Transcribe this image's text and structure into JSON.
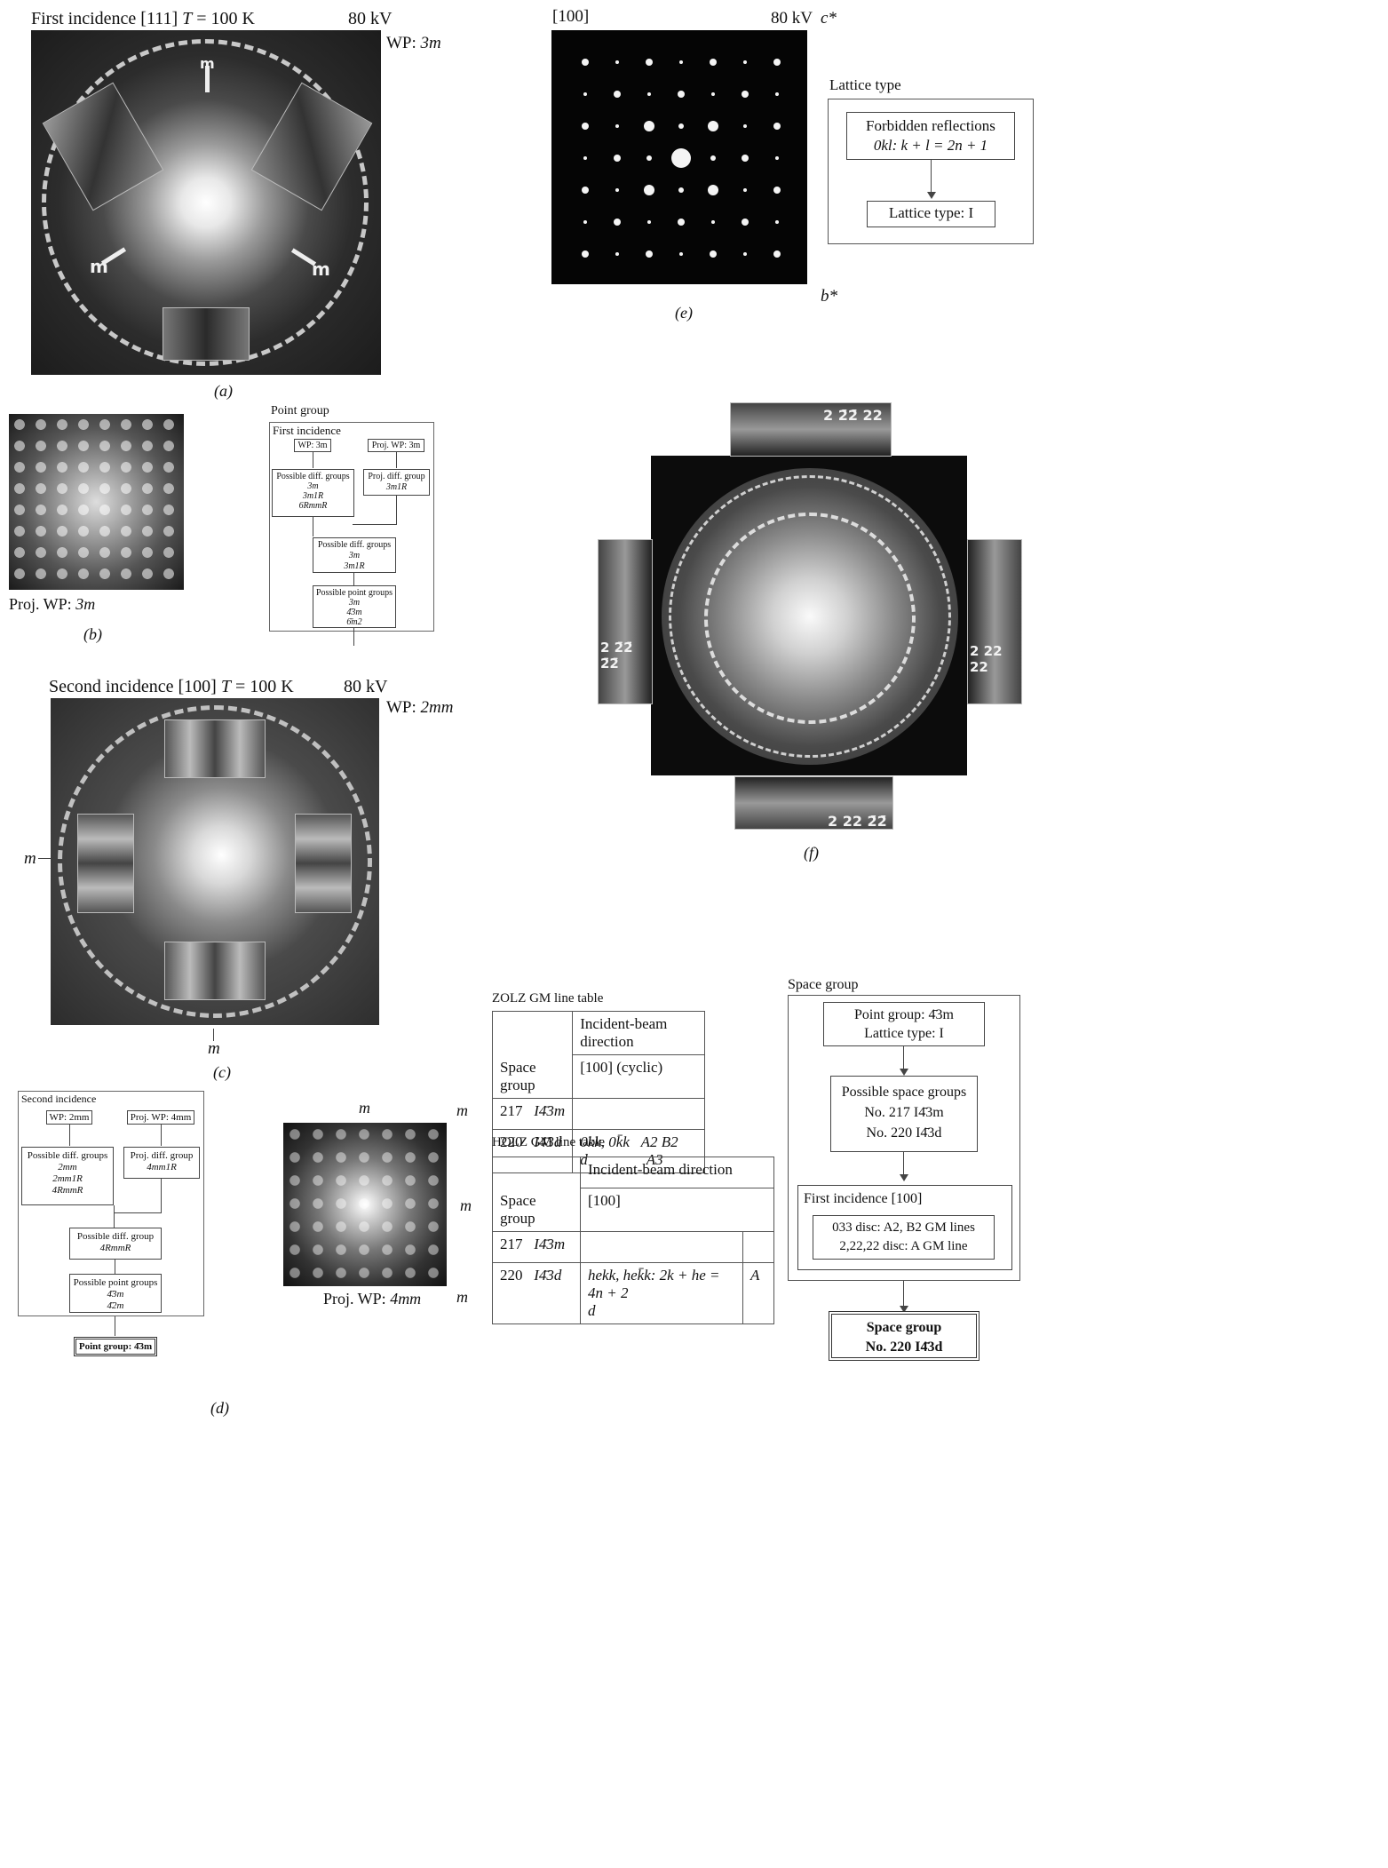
{
  "panel_a": {
    "title_prefix": "First incidence [111] ",
    "title_T": "T",
    "title_suffix": " = 100 K",
    "kv": "80 kV",
    "wp_label": "WP: ",
    "wp_value": "3m",
    "mirror_label": "m",
    "caption": "(a)"
  },
  "panel_b": {
    "proj_label": "Proj. WP: ",
    "proj_value": "3m",
    "caption": "(b)"
  },
  "flow_point_group": {
    "heading": "Point group",
    "section": "First incidence",
    "wp": "WP: 3m",
    "proj_wp": "Proj. WP: 3m",
    "possible_diff_title": "Possible diff. groups",
    "possible_diff_items": [
      "3m",
      "3m1R",
      "6RmmR"
    ],
    "proj_diff_title": "Proj. diff. group",
    "proj_diff_item": "3m1R",
    "possible_diff2_title": "Possible diff. groups",
    "possible_diff2_items": [
      "3m",
      "3m1R"
    ],
    "possible_point_title": "Possible point groups",
    "possible_point_items": [
      "3m",
      "4̄3m",
      "6̄m2"
    ]
  },
  "panel_c": {
    "title_prefix": "Second incidence [100] ",
    "title_T": "T",
    "title_suffix": " = 100 K",
    "kv": "80 kV",
    "wp_label": "WP: ",
    "wp_value": "2mm",
    "m_left": "m",
    "m_bottom": "m",
    "caption": "(c)"
  },
  "panel_d": {
    "section": "Second incidence",
    "wp": "WP: 2mm",
    "proj_wp": "Proj. WP: 4mm",
    "possible_diff_title": "Possible diff. groups",
    "possible_diff_items": [
      "2mm",
      "2mm1R",
      "4RmmR"
    ],
    "proj_diff_title": "Proj. diff. group",
    "proj_diff_item": "4mm1R",
    "possible_diff2_title": "Possible diff. group",
    "possible_diff2_item": "4RmmR",
    "possible_point_title": "Possible point groups",
    "possible_point_items": [
      "4̄3m",
      "4̄2m"
    ],
    "result": "Point group: 4̄3m",
    "proj_label": "Proj. WP: ",
    "proj_value": "4mm",
    "m_labels": [
      "m",
      "m",
      "m",
      "m"
    ],
    "caption": "(d)"
  },
  "panel_e": {
    "zone": "[100]",
    "kv": "80 kV",
    "c_star": "c*",
    "b_star": "b*",
    "lattice_heading": "Lattice type",
    "forbidden_title": "Forbidden reflections",
    "forbidden_rule": "0kl: k + l = 2n + 1",
    "lattice_result": "Lattice type: I",
    "caption": "(e)"
  },
  "panel_f": {
    "top_label": "2 2̄2̄ 22",
    "left_label": "2 2̄2̄ 2̄2̄",
    "right_label": "2 22 22",
    "bottom_label": "2 22 2̄2̄",
    "caption": "(f)"
  },
  "zolz_table": {
    "title": "ZOLZ GM line table",
    "header_dir": "Incident-beam direction",
    "header_sg": "Space group",
    "header_dir_value": "[100] (cyclic)",
    "rows": [
      {
        "num": "217",
        "sg": "I4̄3m",
        "entry": "",
        "sub1": "",
        "sub2": ""
      },
      {
        "num": "220",
        "sg": "I4̄3d",
        "entry": "0kk, 0k̄k",
        "entry2": "d",
        "sub1": "A2   B2",
        "sub2": "A3"
      }
    ]
  },
  "holz_table": {
    "title": "HOLZ GM line table",
    "header_dir": "Incident-beam direction",
    "header_sg": "Space group",
    "header_dir_value": "[100]",
    "rows": [
      {
        "num": "217",
        "sg": "I4̄3m",
        "entry": "",
        "entry2": "",
        "flag": ""
      },
      {
        "num": "220",
        "sg": "I4̄3d",
        "entry": "hekk, hek̄k: 2k + he = 4n + 2",
        "entry2": "d",
        "flag": "A"
      }
    ]
  },
  "space_group_flow": {
    "heading": "Space group",
    "box1_line1": "Point group: 4̄3m",
    "box1_line2": "Lattice type: I",
    "box2_title": "Possible space groups",
    "box2_line1": "No. 217 I4̄3m",
    "box2_line2": "No. 220 I4̄3d",
    "box3_title": "First incidence [100]",
    "box3_line1": "033 disc: A2, B2 GM lines",
    "box3_line2": "2,22,22 disc: A GM line",
    "result_line1": "Space group",
    "result_line2": "No. 220 I4̄3d"
  }
}
